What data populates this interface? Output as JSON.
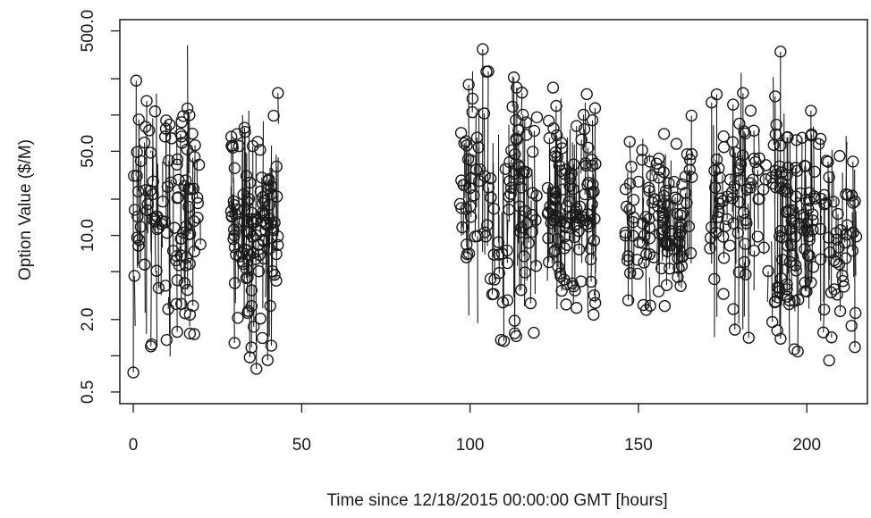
{
  "chart_data": {
    "type": "scatter",
    "title": "",
    "xlabel": "Time since 12/18/2015 00:00:00 GMT [hours]",
    "ylabel": "Option Value ($/M)",
    "x_ticks": [
      0,
      50,
      100,
      150,
      200
    ],
    "x_tick_labels": [
      "0",
      "50",
      "100",
      "150",
      "200"
    ],
    "y_ticks": [
      0.5,
      2.0,
      10.0,
      50.0,
      500.0
    ],
    "y_tick_labels": [
      "0.5",
      "2.0",
      "10.0",
      "50.0",
      "500.0"
    ],
    "y_scale": "log",
    "xlim": [
      -4,
      218
    ],
    "ylim": [
      0.4,
      620
    ],
    "grid": false,
    "legend": "none",
    "marker": "open-circle",
    "line_style": "thin vertical segments connecting points",
    "color": "#1a1a1a",
    "clusters": [
      {
        "x_range": [
          0,
          20
        ],
        "y_range": [
          0.5,
          500
        ]
      },
      {
        "x_range": [
          29,
          43
        ],
        "y_range": [
          0.5,
          280
        ]
      },
      {
        "x_range": [
          97,
          120
        ],
        "y_range": [
          0.5,
          620
        ]
      },
      {
        "x_range": [
          123,
          138
        ],
        "y_range": [
          0.8,
          300
        ]
      },
      {
        "x_range": [
          146,
          166
        ],
        "y_range": [
          1.0,
          160
        ]
      },
      {
        "x_range": [
          171,
          195
        ],
        "y_range": [
          0.5,
          620
        ]
      },
      {
        "x_range": [
          194,
          215
        ],
        "y_range": [
          0.5,
          230
        ]
      }
    ]
  }
}
